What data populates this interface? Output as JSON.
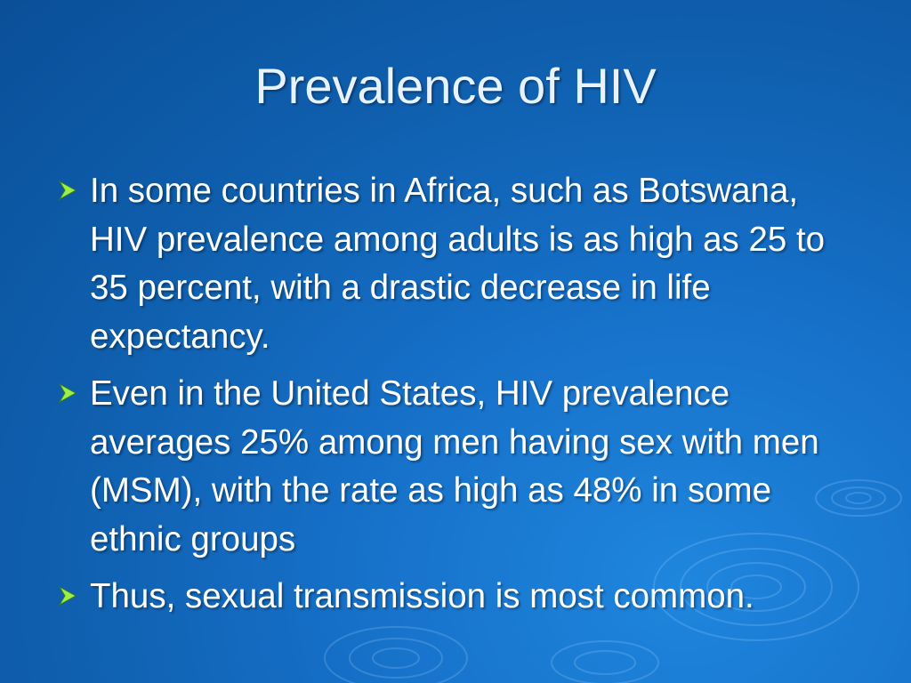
{
  "slide": {
    "title": "Prevalence of HIV",
    "bullets": [
      {
        "text": "In some countries in Africa, such as Botswana, HIV prevalence among adults is as high as 25 to 35 percent, with a drastic decrease in life expectancy."
      },
      {
        "text": "Even in the United States, HIV prevalence averages 25% among men having sex with men (MSM), with the rate as high as 48% in some ethnic groups"
      },
      {
        "text": "Thus, sexual transmission is most common."
      }
    ],
    "bullet_icon": "arrowhead-icon",
    "colors": {
      "background": "#0f5fae",
      "title": "#e9f2ff",
      "text": "#ffffff",
      "bullet_icon": "#9cf04a"
    }
  }
}
